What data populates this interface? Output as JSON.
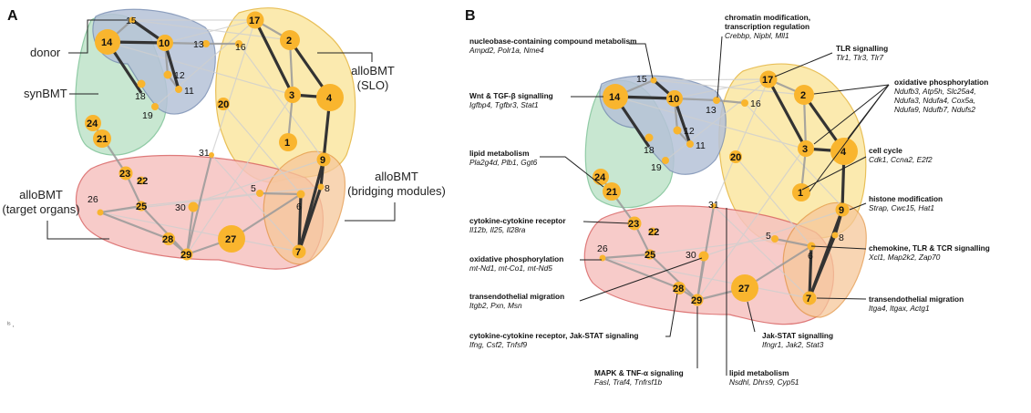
{
  "panel_a": {
    "letter": "A",
    "labels": {
      "donor": "donor",
      "synbmt": "synBMT",
      "allobmt_slo_1": "alloBMT",
      "allobmt_slo_2": "(SLO)",
      "allobmt_bridging_1": "alloBMT",
      "allobmt_bridging_2": "(bridging modules)",
      "allobmt_target_1": "alloBMT",
      "allobmt_target_2": "(target organs)"
    },
    "colors": {
      "donor": "#b6c2d8",
      "synbmt": "#bfe3c9",
      "slo": "#fbe7a2",
      "target": "#f6c3c0",
      "bridging": "#f6c79a",
      "node": "#f9b52e"
    },
    "nodes": [
      "1",
      "2",
      "3",
      "4",
      "5",
      "6",
      "7",
      "8",
      "9",
      "10",
      "11",
      "12",
      "13",
      "14",
      "15",
      "16",
      "17",
      "18",
      "19",
      "20",
      "21",
      "22",
      "23",
      "24",
      "25",
      "26",
      "27",
      "28",
      "29",
      "30",
      "31"
    ]
  },
  "panel_b": {
    "letter": "B",
    "annotations": [
      {
        "title": "nucleobase-containing compound metabolism",
        "genes": "Ampd2, Polr1a, Nme4"
      },
      {
        "title": "Wnt & TGF-β signalling",
        "genes": "Igfbp4, Tgfbr3, Stat1"
      },
      {
        "title": "lipid metabolism",
        "genes": "Pla2g4d, Plb1, Ggt6"
      },
      {
        "title": "cytokine-cytokine receptor",
        "genes": "Il12b, Il25, Il28ra"
      },
      {
        "title": "oxidative phosphorylation",
        "genes": "mt-Nd1, mt-Co1, mt-Nd5"
      },
      {
        "title": "transendothelial migration",
        "genes": "Itgb2, Pxn, Msn"
      },
      {
        "title": "cytokine-cytokine receptor, Jak-STAT signaling",
        "genes": "Ifng, Csf2, Tnfsf9"
      },
      {
        "title": "MAPK & TNF-α signaling",
        "genes": "Fasl, Traf4, Tnfrsf1b"
      },
      {
        "title": "lipid metabolism",
        "genes": "Nsdhl, Dhrs9, Cyp51"
      },
      {
        "title": "Jak-STAT signalling",
        "genes": "Ifngr1, Jak2, Stat3"
      },
      {
        "title": "transendothelial migration",
        "genes": "Itga4, Itgax, Actg1"
      },
      {
        "title": "chemokine, TLR & TCR signalling",
        "genes": "Xcl1, Map2k2, Zap70"
      },
      {
        "title": "histone modification",
        "genes": "Strap, Cwc15, Hat1"
      },
      {
        "title": "cell cycle",
        "genes": "Cdk1, Ccna2, E2f2"
      },
      {
        "title": "oxidative phosphorylation",
        "genes": "Ndufb3, Atp5h, Slc25a4,"
      },
      {
        "title": "TLR signalling",
        "genes": "Tlr1, Tlr3, Tlr7"
      },
      {
        "title": "chromatin modification,",
        "genes": "Crebbp, Nipbl, Mll1"
      }
    ],
    "extra_lines": {
      "chromatin_line2": "transcription regulation",
      "oxphos_genes_2": "Ndufa3, Ndufa4, Cox5a,",
      "oxphos_genes_3": "Ndufa9, Ndufb7, Ndufs2"
    }
  },
  "footnote": "ᴵˢ ,"
}
